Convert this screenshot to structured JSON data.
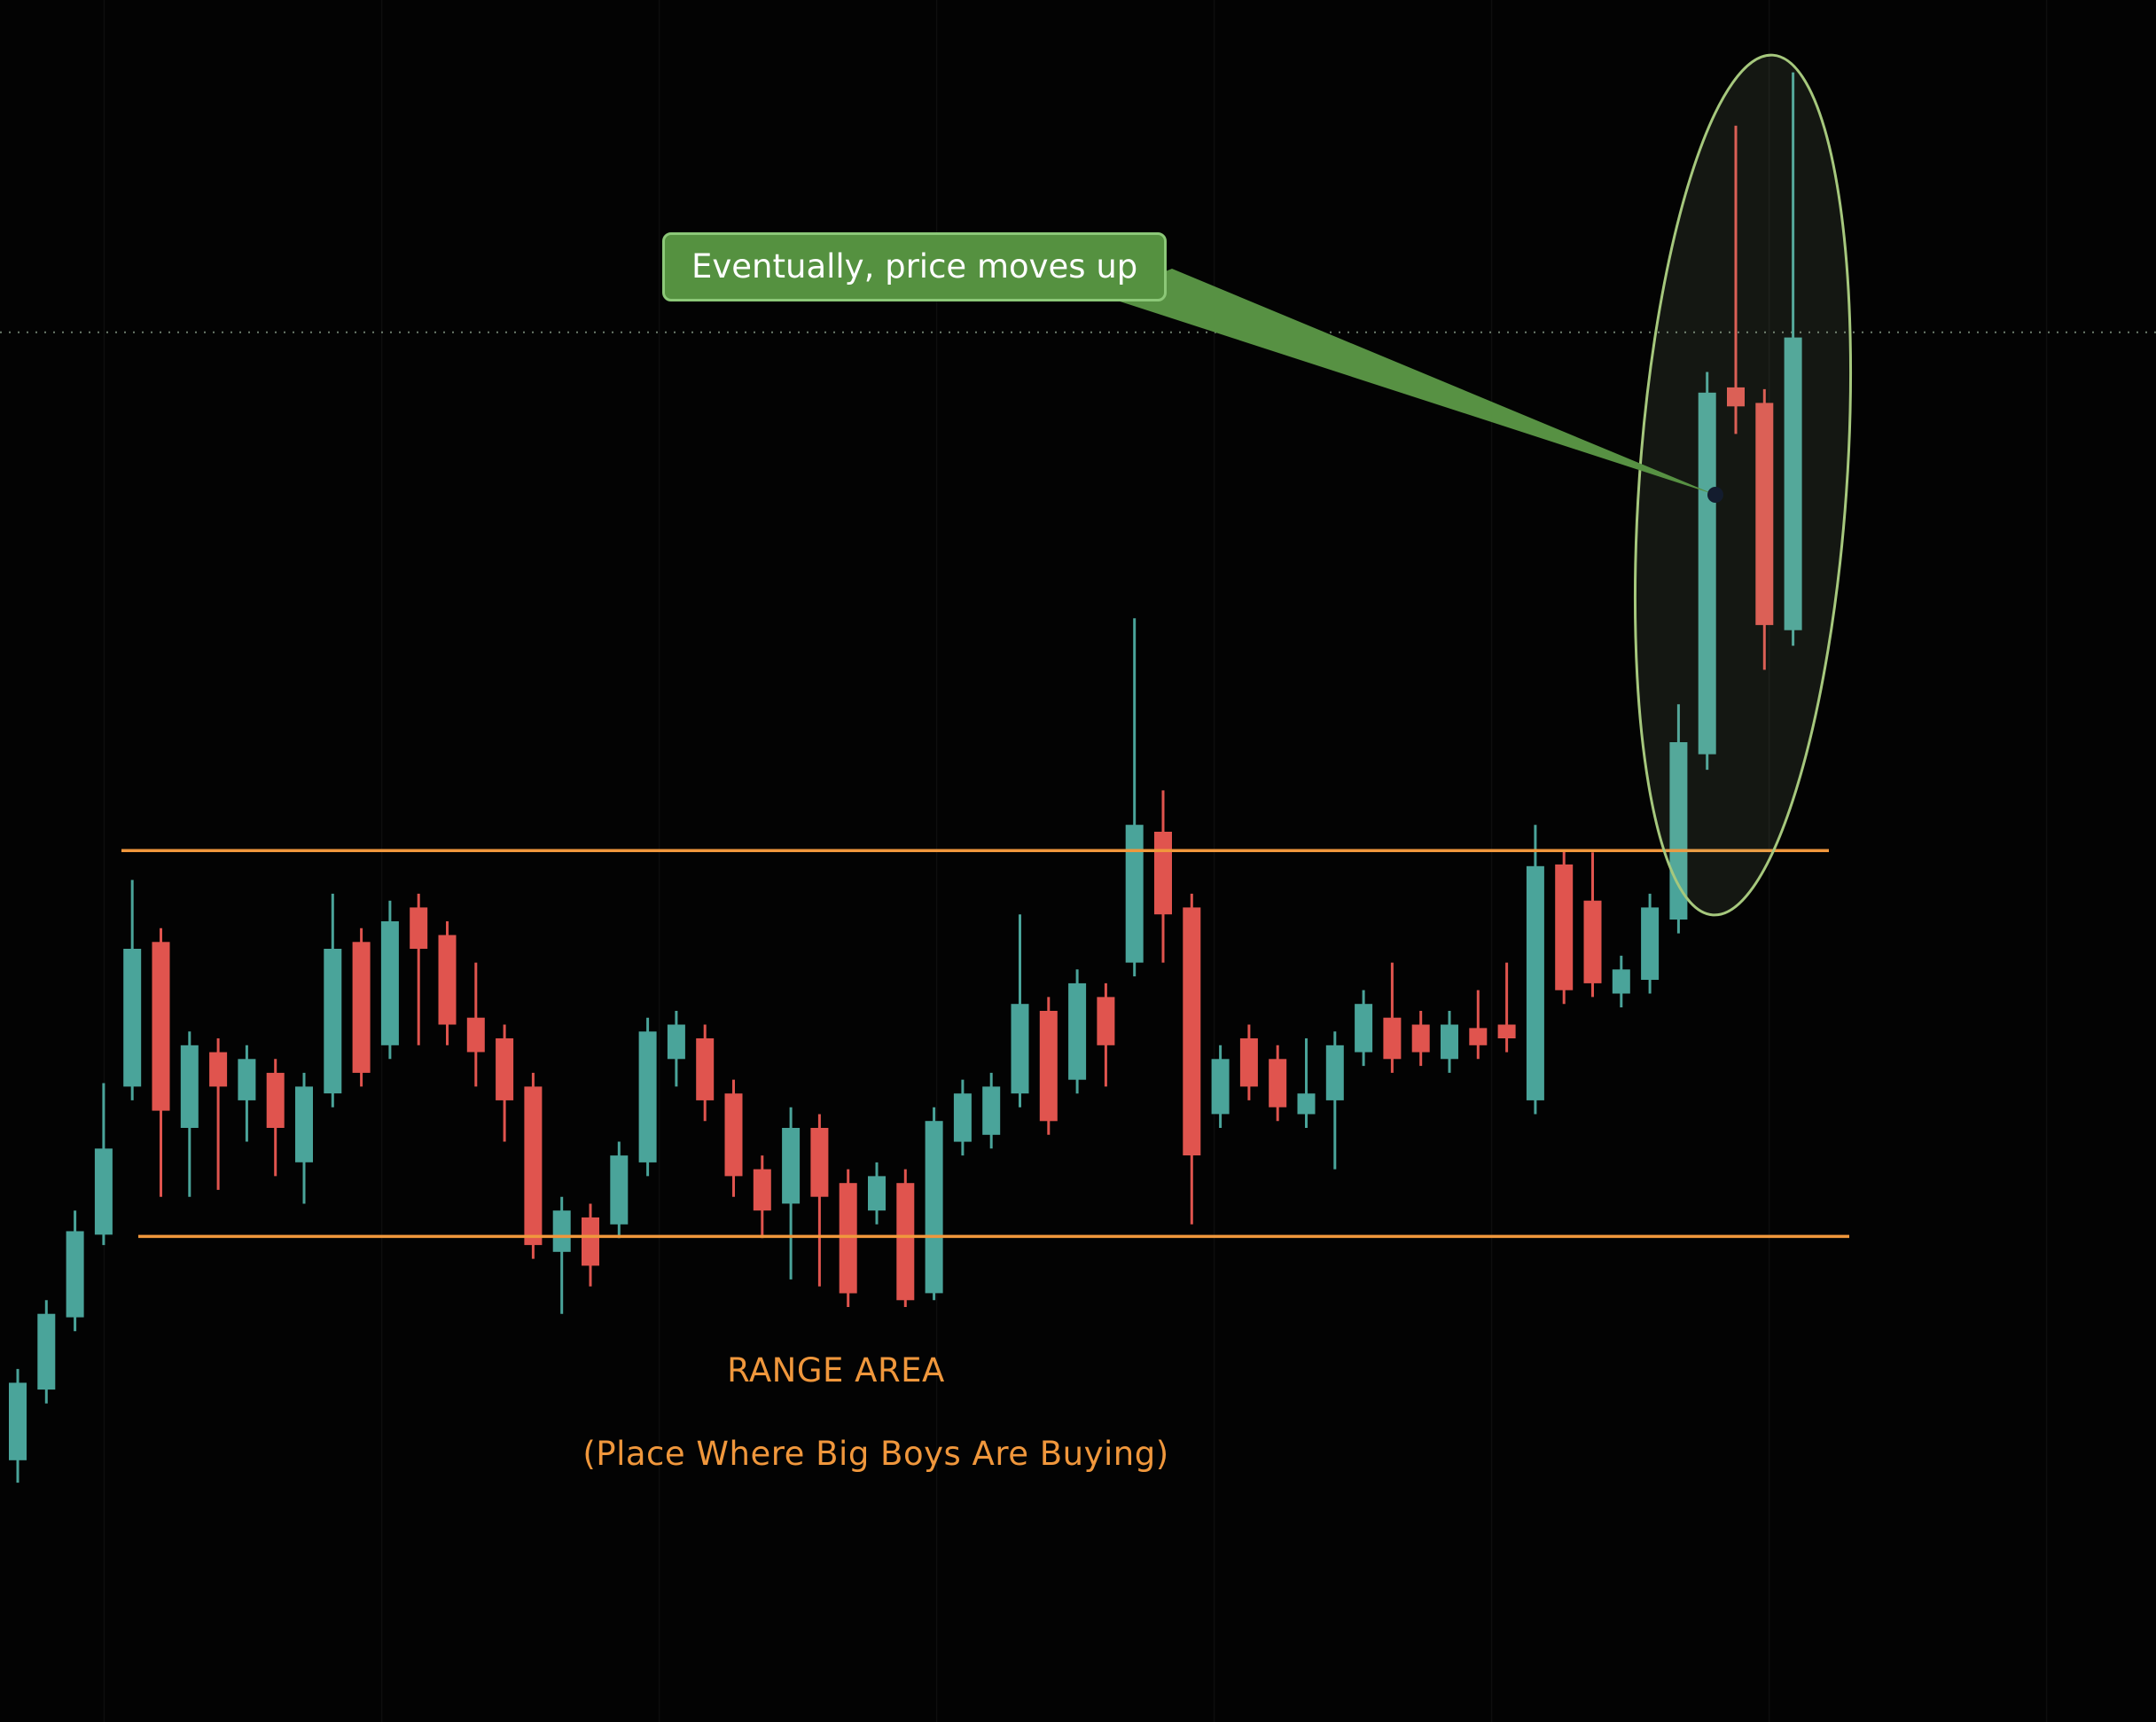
{
  "window": {
    "background": "#030303"
  },
  "annotations": {
    "callout": {
      "text": "Eventually, price moves up",
      "bg": "#559140",
      "border": "#8cc878",
      "text_color": "#ffffff",
      "pointer_color": "#579143",
      "anchor_dot_color": "#131c2e"
    },
    "highlight_ellipse": {
      "stroke": "#a6c87d",
      "fill": "rgba(173,204,156,0.10)"
    },
    "range_label": "RANGE AREA",
    "range_sublabel": "(Place Where Big Boys Are Buying)",
    "accent_orange": "#f0973c"
  },
  "chart_data": {
    "type": "candlestick",
    "title": "",
    "up_color": "#4aa49a",
    "down_color": "#e0544e",
    "grid_color": "rgba(255,255,255,0.055)",
    "dotted_line_color": "rgba(180,205,180,0.6)",
    "axes_visible": false,
    "price_axis": {
      "min": 0,
      "max": 100
    },
    "levels": {
      "range_top": 50.6,
      "range_bottom": 28.2,
      "dotted": 80.7
    },
    "candles": [
      [
        15.2,
        20.5,
        13.9,
        19.7
      ],
      [
        19.3,
        24.5,
        18.5,
        23.7
      ],
      [
        23.5,
        29.7,
        22.7,
        28.5
      ],
      [
        28.3,
        37.1,
        27.7,
        33.3
      ],
      [
        36.9,
        48.9,
        36.1,
        44.9
      ],
      [
        45.3,
        46.1,
        30.5,
        35.5
      ],
      [
        34.5,
        40.1,
        30.5,
        39.3
      ],
      [
        38.9,
        39.7,
        30.9,
        36.9
      ],
      [
        36.1,
        39.3,
        33.7,
        38.5
      ],
      [
        37.7,
        38.5,
        31.7,
        34.5
      ],
      [
        32.5,
        37.7,
        30.1,
        36.9
      ],
      [
        36.5,
        48.1,
        35.7,
        44.9
      ],
      [
        45.3,
        46.1,
        36.9,
        37.7
      ],
      [
        39.3,
        47.7,
        38.5,
        46.5
      ],
      [
        47.3,
        48.1,
        39.3,
        44.9
      ],
      [
        45.7,
        46.5,
        39.3,
        40.5
      ],
      [
        40.9,
        44.1,
        36.9,
        38.9
      ],
      [
        39.7,
        40.5,
        33.7,
        36.1
      ],
      [
        36.9,
        37.7,
        26.9,
        27.7
      ],
      [
        27.3,
        30.5,
        23.7,
        29.7
      ],
      [
        29.3,
        30.1,
        25.3,
        26.5
      ],
      [
        28.9,
        33.7,
        28.1,
        32.9
      ],
      [
        32.5,
        40.9,
        31.7,
        40.1
      ],
      [
        38.5,
        41.3,
        36.9,
        40.5
      ],
      [
        39.7,
        40.5,
        34.9,
        36.1
      ],
      [
        36.5,
        37.3,
        30.5,
        31.7
      ],
      [
        32.1,
        32.9,
        28.1,
        29.7
      ],
      [
        30.1,
        35.7,
        25.7,
        34.5
      ],
      [
        34.5,
        35.3,
        25.3,
        30.5
      ],
      [
        31.3,
        32.1,
        24.1,
        24.9
      ],
      [
        29.7,
        32.5,
        28.9,
        31.7
      ],
      [
        31.3,
        32.1,
        24.1,
        24.5
      ],
      [
        24.9,
        35.7,
        24.5,
        34.9
      ],
      [
        33.7,
        37.3,
        32.9,
        36.5
      ],
      [
        34.1,
        37.7,
        33.3,
        36.9
      ],
      [
        36.5,
        46.9,
        35.7,
        41.7
      ],
      [
        41.3,
        42.1,
        34.1,
        34.9
      ],
      [
        37.3,
        43.7,
        36.5,
        42.9
      ],
      [
        42.1,
        42.9,
        36.9,
        39.3
      ],
      [
        44.1,
        64.1,
        43.3,
        52.1
      ],
      [
        51.7,
        54.1,
        44.1,
        46.9
      ],
      [
        47.3,
        48.1,
        28.9,
        32.9
      ],
      [
        35.3,
        39.3,
        34.5,
        38.5
      ],
      [
        39.7,
        40.5,
        36.1,
        36.9
      ],
      [
        38.5,
        39.3,
        34.9,
        35.7
      ],
      [
        35.3,
        39.7,
        34.5,
        36.5
      ],
      [
        36.1,
        40.1,
        32.1,
        39.3
      ],
      [
        38.9,
        42.5,
        38.1,
        41.7
      ],
      [
        40.9,
        44.1,
        37.7,
        38.5
      ],
      [
        40.5,
        41.3,
        38.1,
        38.9
      ],
      [
        38.5,
        41.3,
        37.7,
        40.5
      ],
      [
        40.3,
        42.5,
        38.5,
        39.3
      ],
      [
        40.5,
        44.1,
        38.9,
        39.7
      ],
      [
        36.1,
        52.1,
        35.3,
        49.7
      ],
      [
        49.8,
        50.6,
        41.7,
        42.5
      ],
      [
        47.7,
        50.5,
        42.1,
        42.9
      ],
      [
        42.3,
        44.5,
        41.5,
        43.7
      ],
      [
        43.1,
        48.1,
        42.3,
        47.3
      ],
      [
        46.6,
        59.1,
        45.8,
        56.9
      ],
      [
        56.2,
        78.4,
        55.3,
        77.2
      ],
      [
        77.5,
        92.7,
        74.8,
        76.4
      ],
      [
        76.6,
        77.4,
        61.1,
        63.7
      ],
      [
        63.4,
        95.8,
        62.5,
        80.4
      ]
    ]
  }
}
